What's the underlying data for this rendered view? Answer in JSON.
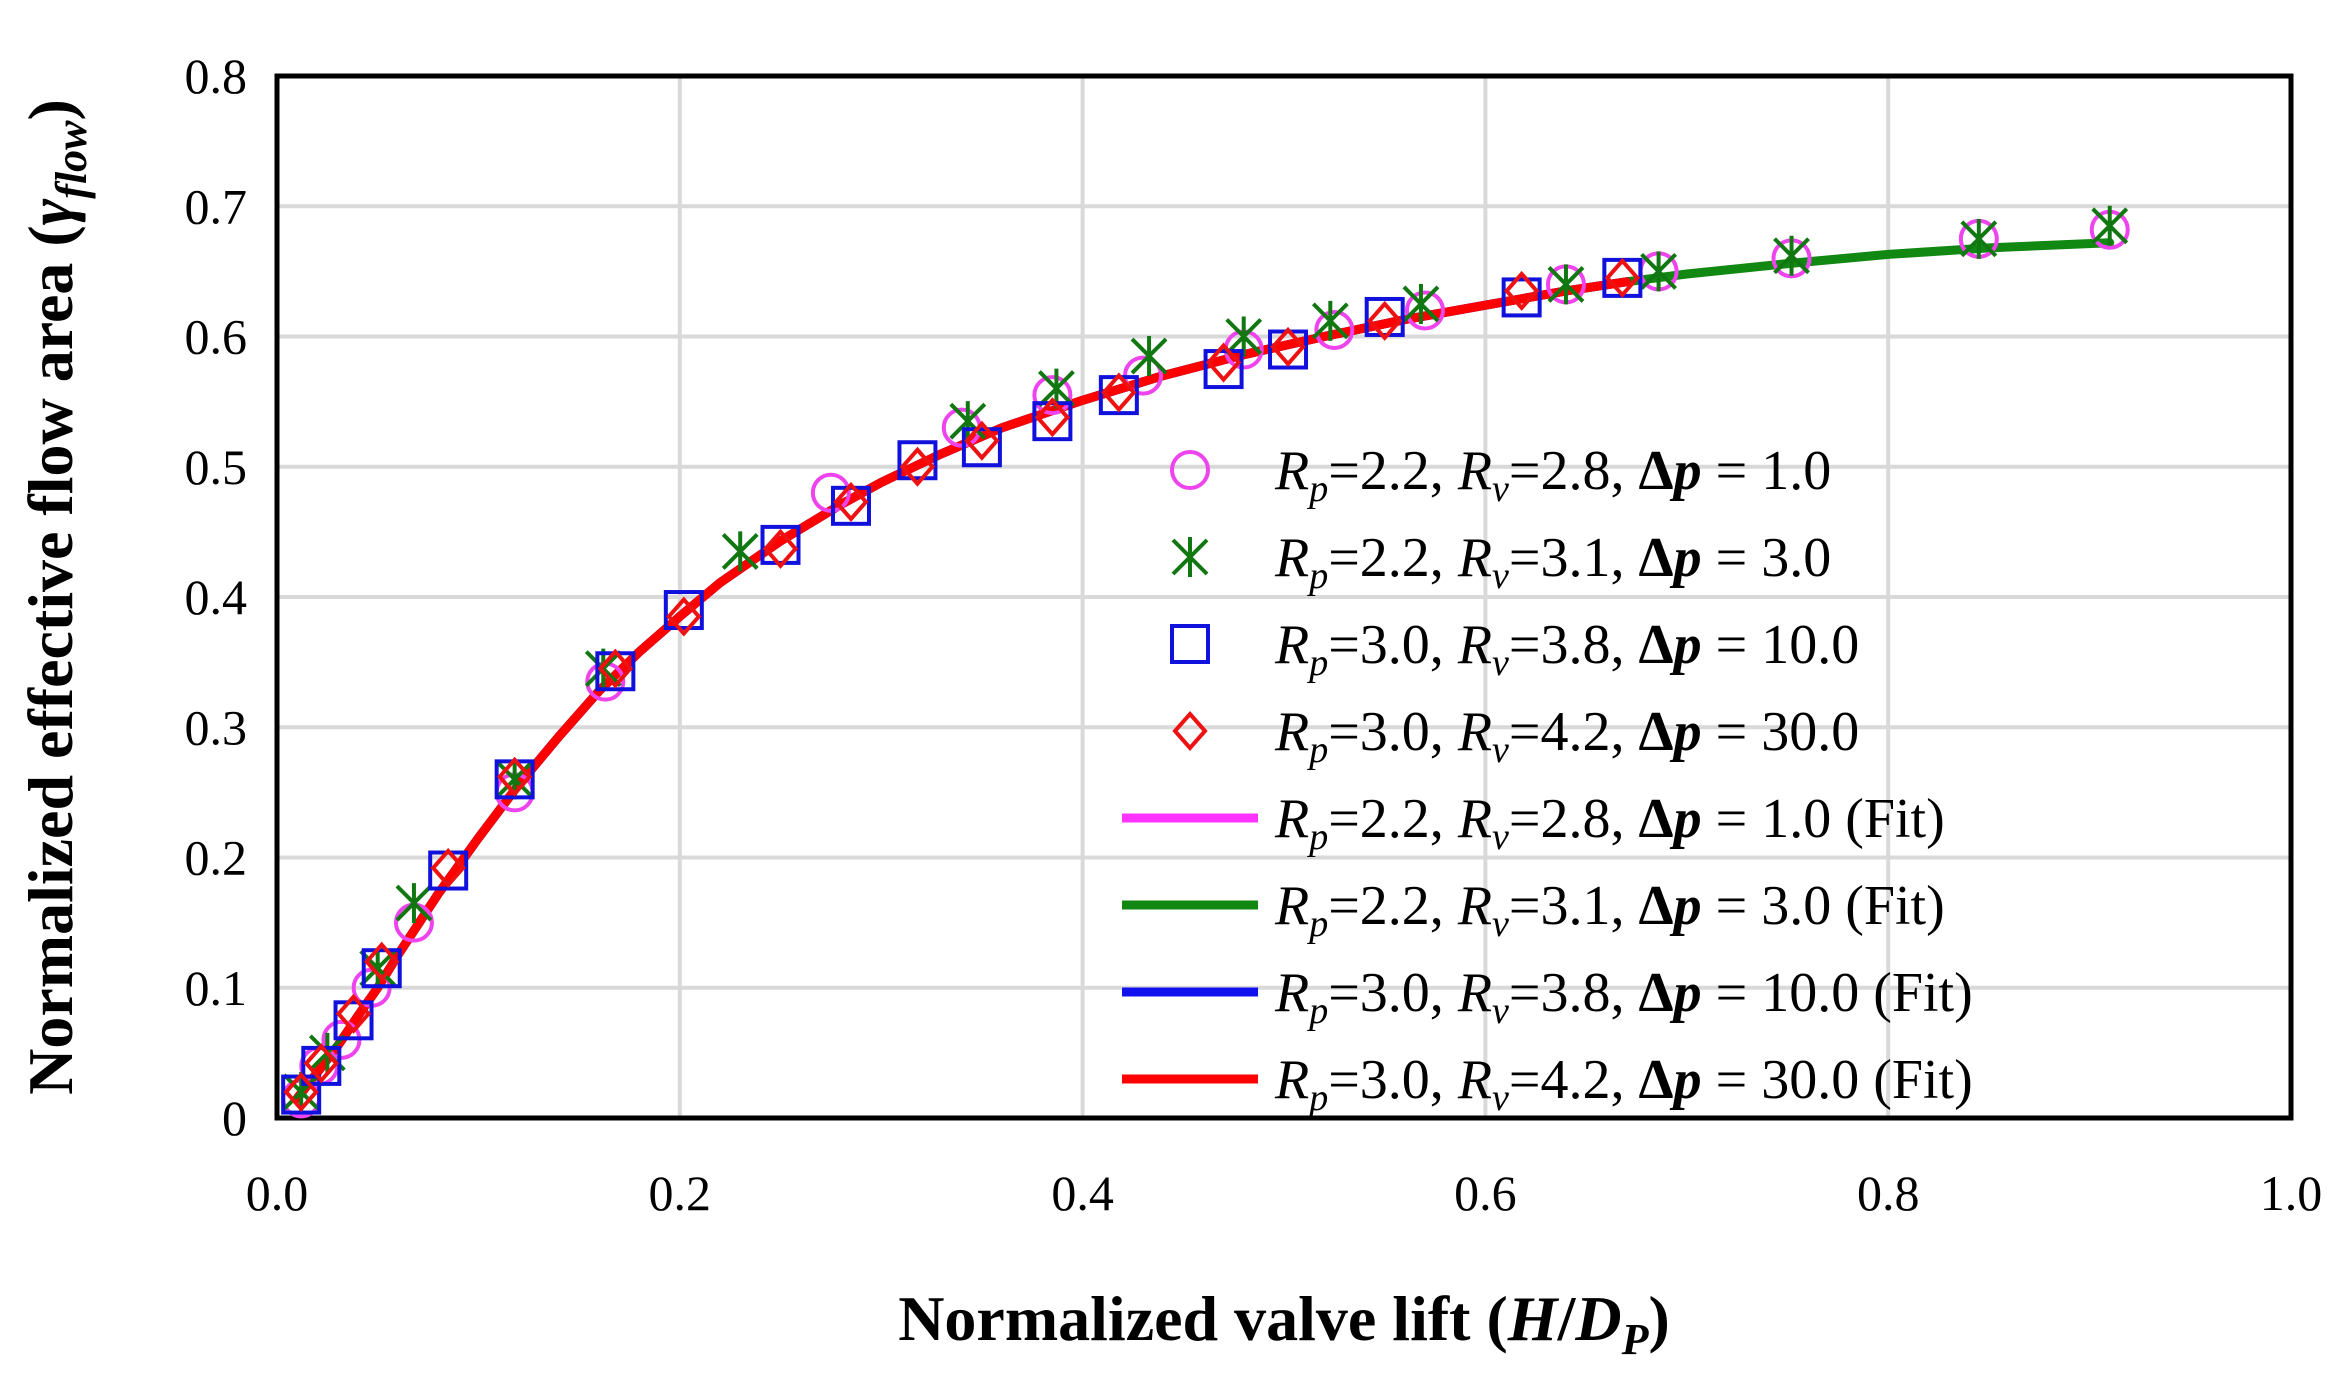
{
  "chart_data": {
    "type": "scatter",
    "title": "",
    "xlabel": {
      "main": "Normalized valve lift (",
      "var": "H",
      "slash": "/",
      "var2": "D",
      "sub": "P",
      "close": ")"
    },
    "ylabel": {
      "main": "Normalized effective flow area (",
      "var": "γ",
      "sub": "flow",
      "close": ")"
    },
    "xlim": [
      0,
      1.0
    ],
    "ylim": [
      0,
      0.8
    ],
    "xticks": [
      0,
      0.2,
      0.4,
      0.6,
      0.8,
      1.0
    ],
    "xtick_labels": [
      "0.0",
      "0.2",
      "0.4",
      "0.6",
      "0.8",
      "1.0"
    ],
    "yticks": [
      0,
      0.1,
      0.2,
      0.3,
      0.4,
      0.5,
      0.6,
      0.7,
      0.8
    ],
    "ytick_labels": [
      "0",
      "0.1",
      "0.2",
      "0.3",
      "0.4",
      "0.5",
      "0.6",
      "0.7",
      "0.8"
    ],
    "grid": true,
    "legend_position": "lower-right inside",
    "series": [
      {
        "name": "Rp=2.2, Rv=2.8, Δp = 1.0",
        "label": {
          "rp": "2.2",
          "rv": "2.8",
          "dp": "1.0",
          "fit": ""
        },
        "marker": "circle",
        "color": "#ee44ee",
        "x": [
          0.012,
          0.021,
          0.032,
          0.047,
          0.068,
          0.118,
          0.163,
          0.275,
          0.34,
          0.385,
          0.43,
          0.48,
          0.525,
          0.57,
          0.64,
          0.686,
          0.752,
          0.845,
          0.91
        ],
        "y": [
          0.015,
          0.04,
          0.06,
          0.1,
          0.15,
          0.25,
          0.335,
          0.48,
          0.53,
          0.555,
          0.57,
          0.59,
          0.605,
          0.62,
          0.64,
          0.65,
          0.66,
          0.675,
          0.682
        ]
      },
      {
        "name": "Rp=2.2, Rv=3.1, Δp = 3.0",
        "label": {
          "rp": "2.2",
          "rv": "3.1",
          "dp": "3.0",
          "fit": ""
        },
        "marker": "star",
        "color": "#117711",
        "x": [
          0.012,
          0.025,
          0.05,
          0.068,
          0.118,
          0.162,
          0.23,
          0.343,
          0.387,
          0.433,
          0.48,
          0.523,
          0.568,
          0.64,
          0.686,
          0.752,
          0.845,
          0.91
        ],
        "y": [
          0.02,
          0.05,
          0.115,
          0.165,
          0.26,
          0.345,
          0.435,
          0.535,
          0.56,
          0.585,
          0.6,
          0.612,
          0.625,
          0.64,
          0.65,
          0.662,
          0.675,
          0.685
        ]
      },
      {
        "name": "Rp=3.0, Rv=3.8, Δp = 10.0",
        "label": {
          "rp": "3.0",
          "rv": "3.8",
          "dp": "10.0",
          "fit": ""
        },
        "marker": "square",
        "color": "#1111dd",
        "x": [
          0.012,
          0.022,
          0.038,
          0.052,
          0.085,
          0.118,
          0.168,
          0.202,
          0.25,
          0.285,
          0.318,
          0.35,
          0.385,
          0.418,
          0.47,
          0.502,
          0.55,
          0.618,
          0.668
        ],
        "y": [
          0.018,
          0.04,
          0.075,
          0.115,
          0.19,
          0.26,
          0.343,
          0.39,
          0.44,
          0.47,
          0.505,
          0.515,
          0.535,
          0.555,
          0.575,
          0.59,
          0.615,
          0.63,
          0.645
        ]
      },
      {
        "name": "Rp=3.0, Rv=4.2, Δp = 30.0",
        "label": {
          "rp": "3.0",
          "rv": "4.2",
          "dp": "30.0",
          "fit": ""
        },
        "marker": "diamond",
        "color": "#ee1111",
        "x": [
          0.012,
          0.022,
          0.038,
          0.052,
          0.085,
          0.118,
          0.168,
          0.202,
          0.25,
          0.285,
          0.318,
          0.35,
          0.385,
          0.418,
          0.47,
          0.502,
          0.55,
          0.618,
          0.668
        ],
        "y": [
          0.02,
          0.042,
          0.08,
          0.12,
          0.192,
          0.262,
          0.345,
          0.385,
          0.437,
          0.473,
          0.5,
          0.52,
          0.538,
          0.557,
          0.58,
          0.592,
          0.612,
          0.635,
          0.645
        ]
      },
      {
        "name": "Rp=2.2, Rv=2.8, Δp = 1.0 (Fit)",
        "label": {
          "rp": "2.2",
          "rv": "2.8",
          "dp": "1.0",
          "fit": "(Fit)"
        },
        "marker": "line",
        "color": "#ff33ff",
        "x": [
          0.01,
          0.69
        ],
        "y": [
          0.015,
          0.648
        ]
      },
      {
        "name": "Rp=2.2, Rv=3.1, Δp = 3.0 (Fit)",
        "label": {
          "rp": "2.2",
          "rv": "3.1",
          "dp": "3.0",
          "fit": "(Fit)"
        },
        "marker": "line",
        "color": "#118811",
        "x": [
          0.01,
          0.91
        ],
        "y": [
          0.015,
          0.672
        ]
      },
      {
        "name": "Rp=3.0, Rv=3.8, Δp = 10.0 (Fit)",
        "label": {
          "rp": "3.0",
          "rv": "3.8",
          "dp": "10.0",
          "fit": "(Fit)"
        },
        "marker": "line",
        "color": "#1111ee",
        "x": [
          0.01,
          0.67
        ],
        "y": [
          0.015,
          0.645
        ]
      },
      {
        "name": "Rp=3.0, Rv=4.2, Δp = 30.0 (Fit)",
        "label": {
          "rp": "3.0",
          "rv": "4.2",
          "dp": "30.0",
          "fit": "(Fit)"
        },
        "marker": "line",
        "color": "#ff0000",
        "x": [
          0.01,
          0.67
        ],
        "y": [
          0.015,
          0.645
        ]
      }
    ],
    "fit_curve": [
      [
        0.01,
        0.015
      ],
      [
        0.02,
        0.035
      ],
      [
        0.03,
        0.055
      ],
      [
        0.04,
        0.078
      ],
      [
        0.05,
        0.1
      ],
      [
        0.06,
        0.125
      ],
      [
        0.08,
        0.172
      ],
      [
        0.1,
        0.215
      ],
      [
        0.12,
        0.256
      ],
      [
        0.14,
        0.293
      ],
      [
        0.16,
        0.328
      ],
      [
        0.18,
        0.358
      ],
      [
        0.2,
        0.385
      ],
      [
        0.22,
        0.411
      ],
      [
        0.25,
        0.443
      ],
      [
        0.28,
        0.471
      ],
      [
        0.3,
        0.488
      ],
      [
        0.33,
        0.51
      ],
      [
        0.36,
        0.53
      ],
      [
        0.4,
        0.551
      ],
      [
        0.44,
        0.57
      ],
      [
        0.48,
        0.586
      ],
      [
        0.52,
        0.6
      ],
      [
        0.56,
        0.613
      ],
      [
        0.6,
        0.624
      ],
      [
        0.64,
        0.635
      ],
      [
        0.67,
        0.642
      ],
      [
        0.7,
        0.648
      ],
      [
        0.75,
        0.656
      ],
      [
        0.8,
        0.663
      ],
      [
        0.85,
        0.668
      ],
      [
        0.91,
        0.672
      ]
    ]
  }
}
